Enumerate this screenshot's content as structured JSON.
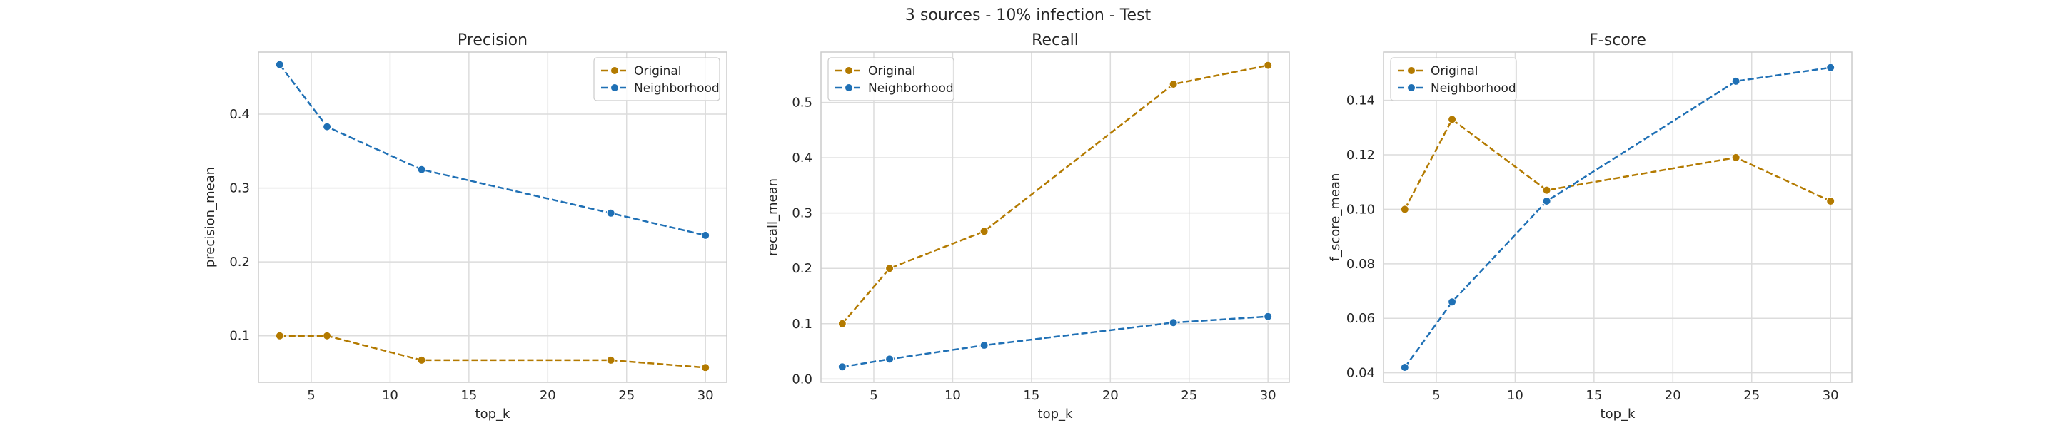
{
  "figure": {
    "suptitle": "3 sources - 10% infection - Test"
  },
  "colors": {
    "original": "#b37a00",
    "neighborhood": "#1f70b5",
    "grid": "#dcdcdc",
    "frame": "#cccccc"
  },
  "chart_data": [
    {
      "type": "line",
      "title": "Precision",
      "xlabel": "top_k",
      "ylabel": "precision_mean",
      "x": [
        3,
        6,
        12,
        24,
        30
      ],
      "xlim": [
        1.65,
        31.35
      ],
      "ylim": [
        0.037,
        0.484
      ],
      "xticks": [
        5,
        10,
        15,
        20,
        25,
        30
      ],
      "yticks": [
        0.1,
        0.2,
        0.3,
        0.4
      ],
      "ytick_labels": [
        "0.1",
        "0.2",
        "0.3",
        "0.4"
      ],
      "grid": true,
      "legend_position": "top-right",
      "series": [
        {
          "name": "Original",
          "color": "#b37a00",
          "values": [
            0.1,
            0.1,
            0.067,
            0.067,
            0.057
          ]
        },
        {
          "name": "Neighborhood",
          "color": "#1f70b5",
          "values": [
            0.467,
            0.383,
            0.325,
            0.266,
            0.236
          ]
        }
      ]
    },
    {
      "type": "line",
      "title": "Recall",
      "xlabel": "top_k",
      "ylabel": "recall_mean",
      "x": [
        3,
        6,
        12,
        24,
        30
      ],
      "xlim": [
        1.65,
        31.35
      ],
      "ylim": [
        -0.006,
        0.591
      ],
      "xticks": [
        5,
        10,
        15,
        20,
        25,
        30
      ],
      "yticks": [
        0.0,
        0.1,
        0.2,
        0.3,
        0.4,
        0.5
      ],
      "ytick_labels": [
        "0.0",
        "0.1",
        "0.2",
        "0.3",
        "0.4",
        "0.5"
      ],
      "grid": true,
      "legend_position": "top-left",
      "series": [
        {
          "name": "Original",
          "color": "#b37a00",
          "values": [
            0.1,
            0.2,
            0.267,
            0.533,
            0.567
          ]
        },
        {
          "name": "Neighborhood",
          "color": "#1f70b5",
          "values": [
            0.022,
            0.036,
            0.061,
            0.102,
            0.113
          ]
        }
      ]
    },
    {
      "type": "line",
      "title": "F-score",
      "xlabel": "top_k",
      "ylabel": "f_score_mean",
      "x": [
        3,
        6,
        12,
        24,
        30
      ],
      "xlim": [
        1.65,
        31.35
      ],
      "ylim": [
        0.0365,
        0.1577
      ],
      "xticks": [
        5,
        10,
        15,
        20,
        25,
        30
      ],
      "yticks": [
        0.04,
        0.06,
        0.08,
        0.1,
        0.12,
        0.14
      ],
      "ytick_labels": [
        "0.04",
        "0.06",
        "0.08",
        "0.10",
        "0.12",
        "0.14"
      ],
      "grid": true,
      "legend_position": "top-left",
      "series": [
        {
          "name": "Original",
          "color": "#b37a00",
          "values": [
            0.1,
            0.133,
            0.107,
            0.119,
            0.103
          ]
        },
        {
          "name": "Neighborhood",
          "color": "#1f70b5",
          "values": [
            0.042,
            0.066,
            0.103,
            0.147,
            0.152
          ]
        }
      ]
    }
  ]
}
